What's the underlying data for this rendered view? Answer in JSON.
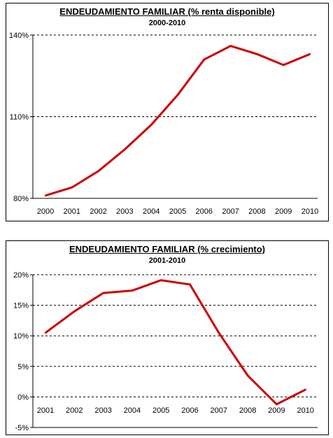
{
  "chart_data": [
    {
      "type": "line",
      "title": "ENDEUDAMIENTO FAMILIAR (% renta disponible)",
      "subtitle": "2000-2010",
      "categories": [
        "2000",
        "2001",
        "2002",
        "2003",
        "2004",
        "2005",
        "2006",
        "2007",
        "2008",
        "2009",
        "2010"
      ],
      "series": [
        {
          "values": [
            81,
            84,
            90,
            98,
            107,
            118,
            131,
            136,
            133,
            129,
            133
          ],
          "color": "#cc0000"
        }
      ],
      "ylim": [
        80,
        140
      ],
      "yticks": [
        80,
        110,
        140
      ],
      "ytick_labels": [
        "80%",
        "110%",
        "140%"
      ],
      "grid": "horizontal dashed"
    },
    {
      "type": "line",
      "title": "ENDEUDAMIENTO FAMILIAR (% crecimiento)",
      "subtitle": "2001-2010",
      "categories": [
        "2001",
        "2002",
        "2003",
        "2004",
        "2005",
        "2006",
        "2007",
        "2008",
        "2009",
        "2010"
      ],
      "series": [
        {
          "values": [
            10.5,
            14.0,
            17.0,
            17.4,
            19.1,
            18.4,
            10.5,
            3.5,
            -1.2,
            1.2
          ],
          "color": "#cc0000"
        }
      ],
      "ylim": [
        -5,
        20
      ],
      "yticks": [
        -5,
        0,
        5,
        10,
        15,
        20
      ],
      "ytick_labels": [
        "-5%",
        "0%",
        "5%",
        "10%",
        "15%",
        "20%"
      ],
      "grid": "horizontal dashed"
    }
  ]
}
